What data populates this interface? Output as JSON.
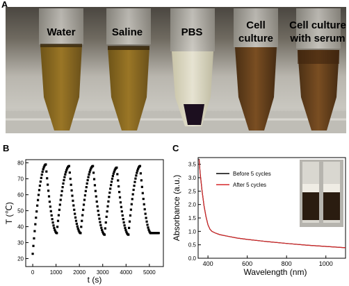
{
  "panels": {
    "a": "A",
    "b": "B",
    "c": "C"
  },
  "photo": {
    "tube_labels": [
      {
        "lines": [
          "Water"
        ]
      },
      {
        "lines": [
          "Saline"
        ]
      },
      {
        "lines": [
          "PBS"
        ]
      },
      {
        "lines": [
          "Cell",
          "culture"
        ]
      },
      {
        "lines": [
          "Cell culture",
          "with serum"
        ]
      }
    ]
  },
  "chart_data": [
    {
      "type": "scatter",
      "xlabel": "t (s)",
      "ylabel": "T (℃)",
      "xlim": [
        -300,
        5600
      ],
      "ylim": [
        15,
        82
      ],
      "xticks": [
        0,
        1000,
        2000,
        3000,
        4000,
        5000
      ],
      "yticks": [
        20,
        30,
        40,
        50,
        60,
        70,
        80
      ],
      "cycles": [
        {
          "heat_start": [
            0,
            23
          ],
          "peak": [
            560,
            79
          ],
          "cool_end": [
            1030,
            36
          ]
        },
        {
          "heat_start": [
            1030,
            36
          ],
          "peak": [
            1560,
            78
          ],
          "cool_end": [
            2050,
            36
          ]
        },
        {
          "heat_start": [
            2050,
            36
          ],
          "peak": [
            2580,
            78
          ],
          "cool_end": [
            3080,
            35
          ]
        },
        {
          "heat_start": [
            3080,
            35
          ],
          "peak": [
            3600,
            77
          ],
          "cool_end": [
            4100,
            35
          ]
        },
        {
          "heat_start": [
            4100,
            35
          ],
          "peak": [
            4600,
            78
          ],
          "cool_end": [
            5060,
            36
          ]
        },
        {
          "heat_start": [
            5060,
            36
          ],
          "peak": [
            5060,
            36
          ],
          "cool_end": [
            5400,
            36
          ]
        }
      ],
      "grid": false
    },
    {
      "type": "line",
      "xlabel": "Wavelength (nm)",
      "ylabel": "Absorbance (a.u.)",
      "xlim": [
        350,
        1100
      ],
      "ylim": [
        0,
        3.75
      ],
      "xticks": [
        400,
        600,
        800,
        1000
      ],
      "yticks": [
        0.0,
        0.5,
        1.0,
        1.5,
        2.0,
        2.5,
        3.0,
        3.5
      ],
      "ytick_labels": [
        "0.0",
        "0.5",
        "1.0",
        "1.5",
        "2.0",
        "2.5",
        "3.0",
        "3.5"
      ],
      "legend_position": "top-left",
      "series": [
        {
          "name": "Before 5 cycles",
          "color": "#000000",
          "x": [
            355,
            360,
            370,
            380,
            390,
            400,
            410,
            420,
            440,
            460,
            500,
            550,
            600,
            700,
            800,
            900,
            1000,
            1100
          ],
          "y": [
            3.7,
            3.2,
            2.5,
            1.95,
            1.55,
            1.25,
            1.08,
            1.0,
            0.93,
            0.88,
            0.82,
            0.75,
            0.7,
            0.62,
            0.55,
            0.49,
            0.44,
            0.39
          ]
        },
        {
          "name": "After    5 cycles",
          "color": "#d62728",
          "x": [
            355,
            360,
            370,
            380,
            390,
            400,
            410,
            420,
            440,
            460,
            500,
            550,
            600,
            700,
            800,
            900,
            1000,
            1100
          ],
          "y": [
            3.68,
            3.18,
            2.5,
            1.95,
            1.55,
            1.25,
            1.08,
            1.0,
            0.93,
            0.88,
            0.82,
            0.75,
            0.7,
            0.62,
            0.55,
            0.49,
            0.44,
            0.39
          ]
        }
      ],
      "grid": false
    }
  ]
}
